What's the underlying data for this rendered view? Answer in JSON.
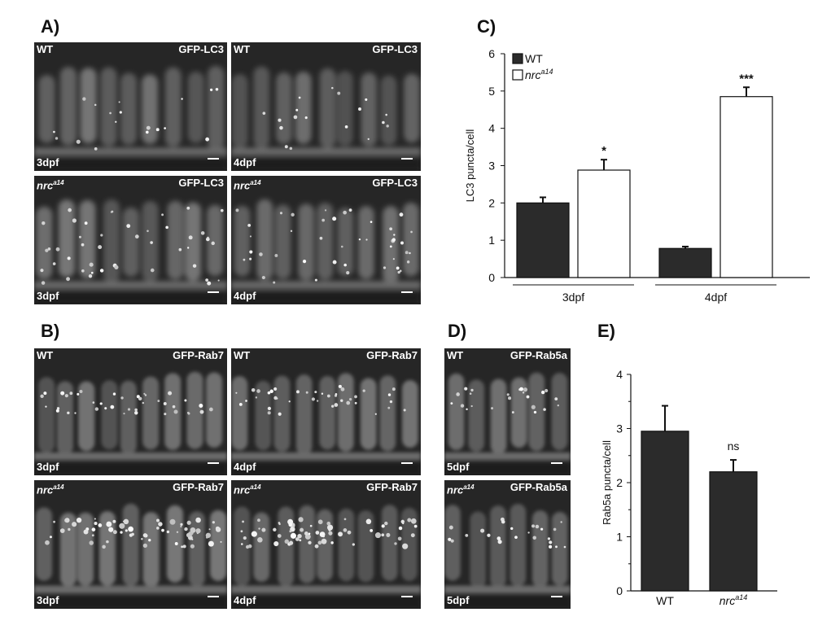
{
  "panel_letters": {
    "a": "A)",
    "b": "B)",
    "c": "C)",
    "d": "D)",
    "e": "E)"
  },
  "micrographs": {
    "a1": {
      "genotype": "WT",
      "marker": "GFP-LC3",
      "stage": "3dpf"
    },
    "a2": {
      "genotype": "WT",
      "marker": "GFP-LC3",
      "stage": "4dpf"
    },
    "a3": {
      "genotype": "nrc",
      "genotype_sup": "a14",
      "marker": "GFP-LC3",
      "stage": "3dpf"
    },
    "a4": {
      "genotype": "nrc",
      "genotype_sup": "a14",
      "marker": "GFP-LC3",
      "stage": "4dpf"
    },
    "b1": {
      "genotype": "WT",
      "marker": "GFP-Rab7",
      "stage": "3dpf"
    },
    "b2": {
      "genotype": "WT",
      "marker": "GFP-Rab7",
      "stage": "4dpf"
    },
    "b3": {
      "genotype": "nrc",
      "genotype_sup": "a14",
      "marker": "GFP-Rab7",
      "stage": "3dpf"
    },
    "b4": {
      "genotype": "nrc",
      "genotype_sup": "a14",
      "marker": "GFP-Rab7",
      "stage": "4dpf"
    },
    "d1": {
      "genotype": "WT",
      "marker": "GFP-Rab5a",
      "stage": "5dpf"
    },
    "d2": {
      "genotype": "nrc",
      "genotype_sup": "a14",
      "marker": "GFP-Rab5a",
      "stage": "5dpf"
    }
  },
  "chart_data": [
    {
      "id": "C",
      "type": "bar",
      "ylabel": "LC3 puncta/cell",
      "ylim": [
        0,
        6
      ],
      "yticks": [
        0,
        1,
        2,
        3,
        4,
        5,
        6
      ],
      "groups": [
        "3dpf",
        "4dpf"
      ],
      "series": [
        {
          "name": "WT",
          "name_sup": "",
          "fill": "#2b2b2b",
          "values": [
            2.0,
            0.78
          ],
          "errors": [
            0.15,
            0.05
          ],
          "annotations": [
            "",
            ""
          ]
        },
        {
          "name": "nrc",
          "name_sup": "a14",
          "fill": "#ffffff",
          "values": [
            2.88,
            4.85
          ],
          "errors": [
            0.28,
            0.25
          ],
          "annotations": [
            "*",
            "***"
          ]
        }
      ],
      "legend": "top-left"
    },
    {
      "id": "E",
      "type": "bar",
      "ylabel": "Rab5a puncta/cell",
      "ylim": [
        0,
        4
      ],
      "yticks": [
        0,
        1,
        2,
        3,
        4
      ],
      "categories": [
        {
          "label": "WT",
          "label_sup": ""
        },
        {
          "label": "nrc",
          "label_sup": "a14"
        }
      ],
      "values": [
        2.95,
        2.2
      ],
      "errors": [
        0.47,
        0.22
      ],
      "annotations": [
        "",
        "ns"
      ],
      "fill": "#2b2b2b"
    }
  ]
}
